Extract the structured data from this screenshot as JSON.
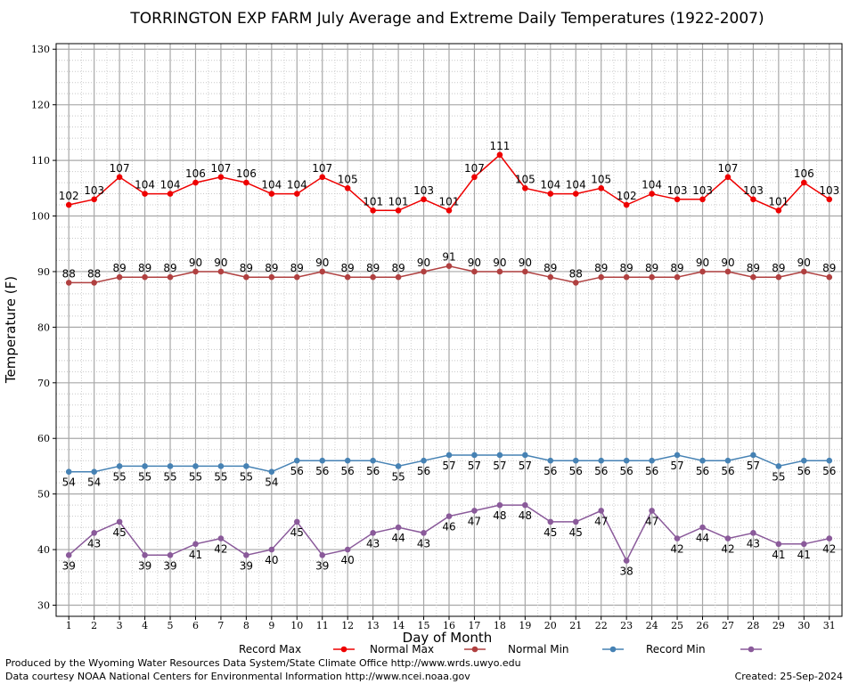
{
  "chart_data": {
    "type": "line",
    "title": "TORRINGTON EXP FARM July Average and Extreme Daily Temperatures (1922-2007)",
    "xlabel": "Day of Month",
    "ylabel": "Temperature (F)",
    "x": [
      1,
      2,
      3,
      4,
      5,
      6,
      7,
      8,
      9,
      10,
      11,
      12,
      13,
      14,
      15,
      16,
      17,
      18,
      19,
      20,
      21,
      22,
      23,
      24,
      25,
      26,
      27,
      28,
      29,
      30,
      31
    ],
    "xlim": [
      0.5,
      31.5
    ],
    "ylim": [
      28,
      131
    ],
    "yticks": [
      30,
      40,
      50,
      60,
      70,
      80,
      90,
      100,
      110,
      120,
      130
    ],
    "grid": true,
    "legend_position": "bottom",
    "series": [
      {
        "name": "Record Max",
        "color": "#ee0000",
        "label_position": "above",
        "values": [
          102,
          103,
          107,
          104,
          104,
          106,
          107,
          106,
          104,
          104,
          107,
          105,
          101,
          101,
          103,
          101,
          107,
          111,
          105,
          104,
          104,
          105,
          102,
          104,
          103,
          103,
          107,
          103,
          101,
          106,
          103
        ]
      },
      {
        "name": "Normal Max",
        "color": "#b04040",
        "label_position": "above",
        "values": [
          88,
          88,
          89,
          89,
          89,
          90,
          90,
          89,
          89,
          89,
          90,
          89,
          89,
          89,
          90,
          91,
          90,
          90,
          90,
          89,
          88,
          89,
          89,
          89,
          89,
          90,
          90,
          89,
          89,
          90,
          89
        ]
      },
      {
        "name": "Normal Min",
        "color": "#4682b4",
        "label_position": "below",
        "values": [
          54,
          54,
          55,
          55,
          55,
          55,
          55,
          55,
          54,
          56,
          56,
          56,
          56,
          55,
          56,
          57,
          57,
          57,
          57,
          56,
          56,
          56,
          56,
          56,
          57,
          56,
          56,
          57,
          55,
          56,
          56
        ]
      },
      {
        "name": "Record Min",
        "color": "#8a5a9a",
        "label_position": "below",
        "values": [
          39,
          43,
          45,
          39,
          39,
          41,
          42,
          39,
          40,
          45,
          39,
          40,
          43,
          44,
          43,
          46,
          47,
          48,
          48,
          45,
          45,
          47,
          38,
          47,
          42,
          44,
          42,
          43,
          41,
          41,
          42
        ]
      }
    ]
  },
  "footer": {
    "line1": "Produced by the Wyoming Water Resources Data System/State Climate Office http://www.wrds.uwyo.edu",
    "line2": "Data courtesy NOAA National Centers for Environmental Information http://www.ncei.noaa.gov",
    "created": "Created:  25-Sep-2024"
  }
}
